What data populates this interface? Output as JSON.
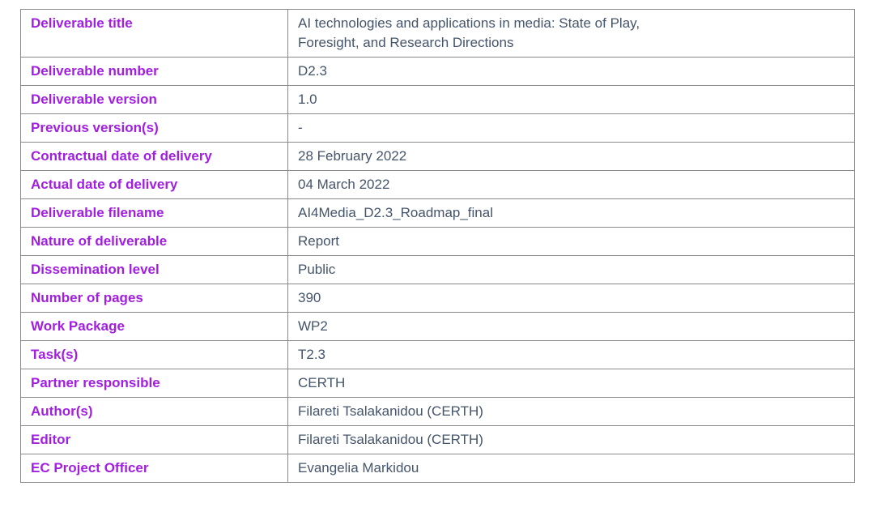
{
  "colors": {
    "label_text": "#a21ee0",
    "value_text": "#44546a",
    "table_border": "#8a8a8a",
    "background": "#ffffff"
  },
  "table": {
    "name": "deliverable-information-table",
    "rows": [
      {
        "label": "Deliverable title",
        "value": "AI technologies and applications in media: State of Play,\nForesight, and Research Directions"
      },
      {
        "label": "Deliverable number",
        "value": "D2.3"
      },
      {
        "label": "Deliverable version",
        "value": "1.0"
      },
      {
        "label": "Previous version(s)",
        "value": "-"
      },
      {
        "label": "Contractual date of delivery",
        "value": "28 February 2022"
      },
      {
        "label": "Actual date of delivery",
        "value": "04 March 2022"
      },
      {
        "label": "Deliverable filename",
        "value": "AI4Media_D2.3_Roadmap_final"
      },
      {
        "label": "Nature of deliverable",
        "value": "Report"
      },
      {
        "label": "Dissemination level",
        "value": "Public"
      },
      {
        "label": "Number of pages",
        "value": "390"
      },
      {
        "label": "Work Package",
        "value": "WP2"
      },
      {
        "label": "Task(s)",
        "value": "T2.3"
      },
      {
        "label": "Partner responsible",
        "value": "CERTH"
      },
      {
        "label": "Author(s)",
        "value": "Filareti Tsalakanidou (CERTH)"
      },
      {
        "label": "Editor",
        "value": "Filareti Tsalakanidou (CERTH)"
      },
      {
        "label": "EC Project Officer",
        "value": "Evangelia Markidou"
      }
    ]
  }
}
